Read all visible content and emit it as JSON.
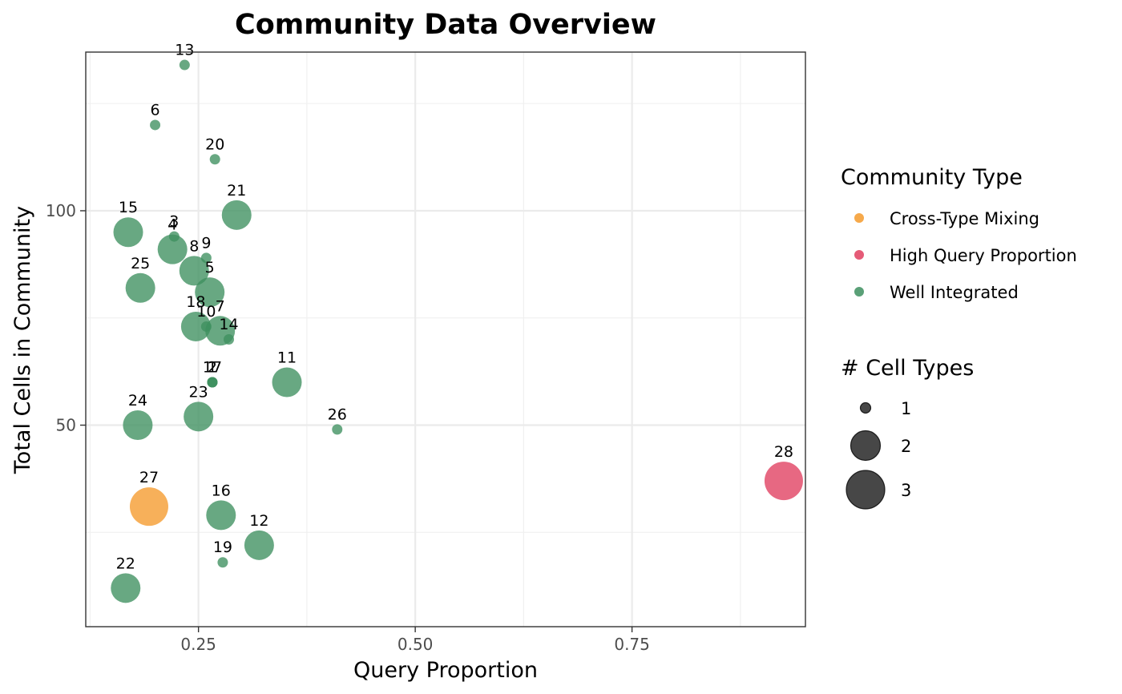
{
  "chart_data": {
    "type": "scatter",
    "title": "Community Data Overview",
    "xlabel": "Query Proportion",
    "ylabel": "Total Cells in Community",
    "xlim": [
      0.12,
      0.95
    ],
    "ylim": [
      3,
      137
    ],
    "x_ticks": [
      0.25,
      0.5,
      0.75
    ],
    "x_tick_labels": [
      "0.25",
      "0.50",
      "0.75"
    ],
    "y_ticks": [
      50,
      100
    ],
    "y_tick_labels": [
      "50",
      "100"
    ],
    "grid": true,
    "legend_placement": "right",
    "color_legend": {
      "title": "Community Type",
      "entries": [
        {
          "label": "Cross-Type Mixing",
          "color": "#F59A2C"
        },
        {
          "label": "High Query Proportion",
          "color": "#E03E5F"
        },
        {
          "label": "Well Integrated",
          "color": "#3D8F5F"
        }
      ]
    },
    "size_legend": {
      "title": "# Cell Types",
      "entries": [
        {
          "label": "1",
          "value": 1
        },
        {
          "label": "2",
          "value": 2
        },
        {
          "label": "3",
          "value": 3
        }
      ]
    },
    "points": [
      {
        "label": "1",
        "x": 0.266,
        "y": 60,
        "size": 1,
        "type": "Well Integrated"
      },
      {
        "label": "2",
        "x": 0.266,
        "y": 60,
        "size": 1,
        "type": "Well Integrated"
      },
      {
        "label": "3",
        "x": 0.222,
        "y": 94,
        "size": 1,
        "type": "Well Integrated"
      },
      {
        "label": "4",
        "x": 0.22,
        "y": 91,
        "size": 2,
        "type": "Well Integrated"
      },
      {
        "label": "5",
        "x": 0.263,
        "y": 81,
        "size": 2,
        "type": "Well Integrated"
      },
      {
        "label": "6",
        "x": 0.2,
        "y": 120,
        "size": 1,
        "type": "Well Integrated"
      },
      {
        "label": "7",
        "x": 0.275,
        "y": 72,
        "size": 2,
        "type": "Well Integrated"
      },
      {
        "label": "8",
        "x": 0.245,
        "y": 86,
        "size": 2,
        "type": "Well Integrated"
      },
      {
        "label": "9",
        "x": 0.259,
        "y": 89,
        "size": 1,
        "type": "Well Integrated"
      },
      {
        "label": "10",
        "x": 0.259,
        "y": 73,
        "size": 1,
        "type": "Well Integrated"
      },
      {
        "label": "11",
        "x": 0.352,
        "y": 60,
        "size": 2,
        "type": "Well Integrated"
      },
      {
        "label": "12",
        "x": 0.32,
        "y": 22,
        "size": 2,
        "type": "Well Integrated"
      },
      {
        "label": "13",
        "x": 0.234,
        "y": 134,
        "size": 1,
        "type": "Well Integrated"
      },
      {
        "label": "14",
        "x": 0.285,
        "y": 70,
        "size": 1,
        "type": "Well Integrated"
      },
      {
        "label": "15",
        "x": 0.169,
        "y": 95,
        "size": 2,
        "type": "Well Integrated"
      },
      {
        "label": "16",
        "x": 0.276,
        "y": 29,
        "size": 2,
        "type": "Well Integrated"
      },
      {
        "label": "17",
        "x": 0.266,
        "y": 60,
        "size": 1,
        "type": "Well Integrated"
      },
      {
        "label": "18",
        "x": 0.247,
        "y": 73,
        "size": 2,
        "type": "Well Integrated"
      },
      {
        "label": "19",
        "x": 0.278,
        "y": 18,
        "size": 1,
        "type": "Well Integrated"
      },
      {
        "label": "20",
        "x": 0.269,
        "y": 112,
        "size": 1,
        "type": "Well Integrated"
      },
      {
        "label": "21",
        "x": 0.294,
        "y": 99,
        "size": 2,
        "type": "Well Integrated"
      },
      {
        "label": "22",
        "x": 0.166,
        "y": 12,
        "size": 2,
        "type": "Well Integrated"
      },
      {
        "label": "23",
        "x": 0.25,
        "y": 52,
        "size": 2,
        "type": "Well Integrated"
      },
      {
        "label": "24",
        "x": 0.18,
        "y": 50,
        "size": 2,
        "type": "Well Integrated"
      },
      {
        "label": "25",
        "x": 0.183,
        "y": 82,
        "size": 2,
        "type": "Well Integrated"
      },
      {
        "label": "26",
        "x": 0.41,
        "y": 49,
        "size": 1,
        "type": "Well Integrated"
      },
      {
        "label": "27",
        "x": 0.193,
        "y": 31,
        "size": 3,
        "type": "Cross-Type Mixing"
      },
      {
        "label": "28",
        "x": 0.925,
        "y": 37,
        "size": 3,
        "type": "High Query Proportion"
      }
    ]
  }
}
